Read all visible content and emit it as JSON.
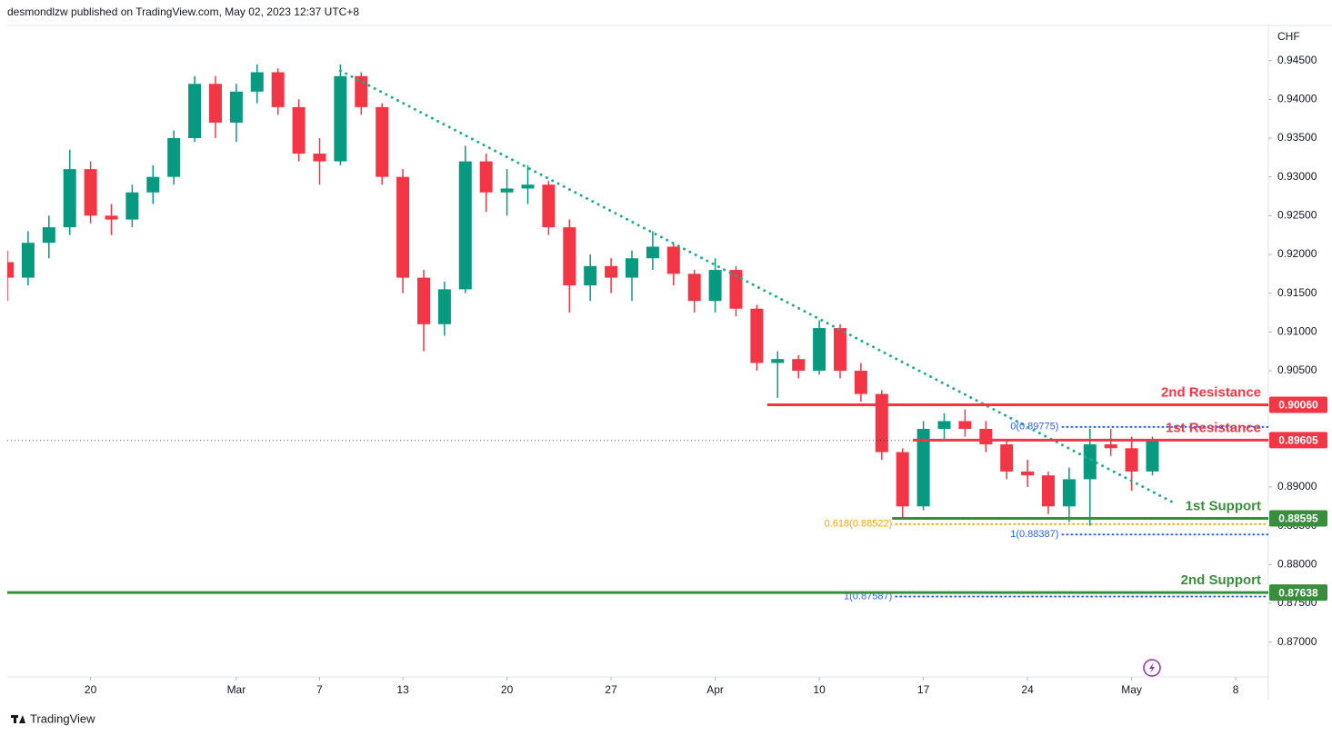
{
  "header": "desmondlzw published on TradingView.com, May 02, 2023 12:37 UTC+8",
  "footer": "TradingView",
  "chart_data": {
    "type": "candlestick",
    "currency": "CHF",
    "x": [
      "Feb 14",
      "Feb 15",
      "Feb 16",
      "Feb 17",
      "Feb 20",
      "Feb 21",
      "Feb 22",
      "Feb 23",
      "Feb 24",
      "Feb 27",
      "Feb 28",
      "Mar 1",
      "Mar 2",
      "Mar 3",
      "Mar 6",
      "Mar 7",
      "Mar 8",
      "Mar 9",
      "Mar 10",
      "Mar 13",
      "Mar 14",
      "Mar 15",
      "Mar 16",
      "Mar 17",
      "Mar 20",
      "Mar 21",
      "Mar 22",
      "Mar 23",
      "Mar 24",
      "Mar 27",
      "Mar 28",
      "Mar 29",
      "Mar 30",
      "Mar 31",
      "Apr 3",
      "Apr 4",
      "Apr 5",
      "Apr 6",
      "Apr 7",
      "Apr 10",
      "Apr 11",
      "Apr 12",
      "Apr 13",
      "Apr 14",
      "Apr 17",
      "Apr 18",
      "Apr 19",
      "Apr 20",
      "Apr 21",
      "Apr 24",
      "Apr 25",
      "Apr 26",
      "Apr 27",
      "Apr 28",
      "May 1",
      "May 2",
      "May 3",
      "May 4",
      "May 5",
      "May 8",
      "May 9"
    ],
    "open": [
      0.919,
      0.917,
      0.9215,
      0.9235,
      0.931,
      0.925,
      0.9245,
      0.928,
      0.93,
      0.935,
      0.942,
      0.937,
      0.941,
      0.9435,
      0.939,
      0.933,
      0.932,
      0.943,
      0.939,
      0.93,
      0.917,
      0.911,
      0.9155,
      0.932,
      0.928,
      0.9285,
      0.929,
      0.9235,
      0.916,
      0.9185,
      0.917,
      0.9195,
      0.921,
      0.9175,
      0.914,
      0.918,
      0.913,
      0.906,
      0.9065,
      0.905,
      0.9105,
      0.905,
      0.902,
      0.8945,
      0.8875,
      0.8975,
      0.8985,
      0.8975,
      0.8955,
      0.892,
      0.8915,
      0.8875,
      0.891,
      0.8955,
      0.895,
      0.892,
      null,
      null,
      null,
      null,
      null
    ],
    "high": [
      0.9205,
      0.923,
      0.925,
      0.9335,
      0.932,
      0.9265,
      0.929,
      0.9315,
      0.936,
      0.943,
      0.943,
      0.942,
      0.9445,
      0.944,
      0.94,
      0.935,
      0.9445,
      0.9435,
      0.9395,
      0.931,
      0.918,
      0.9165,
      0.934,
      0.933,
      0.931,
      0.9315,
      0.9295,
      0.9245,
      0.92,
      0.9195,
      0.9205,
      0.923,
      0.9215,
      0.918,
      0.9195,
      0.9185,
      0.9135,
      0.9075,
      0.907,
      0.9115,
      0.911,
      0.906,
      0.9025,
      0.895,
      0.8985,
      0.8995,
      0.9,
      0.8985,
      0.896,
      0.8935,
      0.892,
      0.8925,
      0.8975,
      0.8975,
      0.8965,
      0.8965,
      null,
      null,
      null,
      null,
      null
    ],
    "low": [
      0.914,
      0.916,
      0.9195,
      0.9225,
      0.924,
      0.9225,
      0.9235,
      0.9265,
      0.929,
      0.9345,
      0.935,
      0.9345,
      0.9395,
      0.938,
      0.932,
      0.929,
      0.9315,
      0.938,
      0.929,
      0.915,
      0.9075,
      0.9095,
      0.915,
      0.9255,
      0.925,
      0.9265,
      0.9225,
      0.9125,
      0.914,
      0.915,
      0.914,
      0.918,
      0.916,
      0.9125,
      0.9125,
      0.912,
      0.905,
      0.9015,
      0.904,
      0.9045,
      0.904,
      0.901,
      0.8935,
      0.886,
      0.887,
      0.896,
      0.8965,
      0.8945,
      0.891,
      0.89,
      0.8865,
      0.8855,
      0.885,
      0.894,
      0.8895,
      0.8915,
      null,
      null,
      null,
      null,
      null
    ],
    "close": [
      0.917,
      0.9215,
      0.9235,
      0.931,
      0.925,
      0.9245,
      0.928,
      0.93,
      0.935,
      0.942,
      0.937,
      0.941,
      0.9435,
      0.939,
      0.933,
      0.932,
      0.943,
      0.939,
      0.93,
      0.917,
      0.911,
      0.9155,
      0.932,
      0.928,
      0.9285,
      0.929,
      0.9235,
      0.916,
      0.9185,
      0.917,
      0.9195,
      0.921,
      0.9175,
      0.914,
      0.918,
      0.913,
      0.906,
      0.9065,
      0.905,
      0.9105,
      0.905,
      0.902,
      0.8945,
      0.8875,
      0.8975,
      0.8985,
      0.8975,
      0.8955,
      0.892,
      0.8915,
      0.8875,
      0.891,
      0.8955,
      0.895,
      0.892,
      0.896,
      null,
      null,
      null,
      null,
      null
    ],
    "up_color": "#089981",
    "down_color": "#f23645",
    "ylim": [
      0.8655,
      0.9493
    ],
    "yticks": [
      {
        "value": 0.945,
        "label": "0.94500"
      },
      {
        "value": 0.94,
        "label": "0.94000"
      },
      {
        "value": 0.935,
        "label": "0.93500"
      },
      {
        "value": 0.93,
        "label": "0.93000"
      },
      {
        "value": 0.925,
        "label": "0.92500"
      },
      {
        "value": 0.92,
        "label": "0.92000"
      },
      {
        "value": 0.915,
        "label": "0.91500"
      },
      {
        "value": 0.91,
        "label": "0.91000"
      },
      {
        "value": 0.905,
        "label": "0.90500"
      },
      {
        "value": 0.89,
        "label": "0.89000"
      },
      {
        "value": 0.885,
        "label": "0.88500"
      },
      {
        "value": 0.88,
        "label": "0.88000"
      },
      {
        "value": 0.875,
        "label": "0.87500"
      },
      {
        "value": 0.87,
        "label": "0.87000"
      }
    ],
    "xticks": [
      {
        "value": "Feb 20",
        "label": "20"
      },
      {
        "value": "Mar 1",
        "label": "Mar"
      },
      {
        "value": "Mar 7",
        "label": "7"
      },
      {
        "value": "Mar 13",
        "label": "13"
      },
      {
        "value": "Mar 20",
        "label": "20"
      },
      {
        "value": "Mar 27",
        "label": "27"
      },
      {
        "value": "Apr 3",
        "label": "Apr"
      },
      {
        "value": "Apr 10",
        "label": "10"
      },
      {
        "value": "Apr 17",
        "label": "17"
      },
      {
        "value": "Apr 24",
        "label": "24"
      },
      {
        "value": "May 1",
        "label": "May"
      },
      {
        "value": "May 8",
        "label": "8"
      }
    ],
    "levels": [
      {
        "label": "2nd Resistance",
        "value": 0.9006,
        "value_label": "0.90060",
        "color": "#f23645",
        "from": "Apr 6"
      },
      {
        "label": "1st Resistance",
        "value": 0.89605,
        "value_label": "0.89605",
        "color": "#f23645",
        "from": "Apr 17"
      },
      {
        "label": "1st Support",
        "value": 0.88595,
        "value_label": "0.88595",
        "color": "#388e3c",
        "from": "Apr 14"
      },
      {
        "label": "2nd Support",
        "value": 0.87638,
        "value_label": "0.87638",
        "color": "#388e3c"
      }
    ],
    "fib_levels": [
      {
        "label": "0(0.89775)",
        "value": 0.89775,
        "color": "#2962ff",
        "from": "Apr 26"
      },
      {
        "label": "1(0.88387)",
        "value": 0.88387,
        "color": "#2962ff",
        "from": "Apr 26"
      },
      {
        "label": "0.618(0.88522)",
        "value": 0.88522,
        "color": "#f7a600",
        "from": "Apr 14"
      },
      {
        "label": "1(0.87587)",
        "value": 0.87587,
        "color": "#2962ff",
        "from": "Apr 14"
      }
    ],
    "trendline": {
      "x": [
        "Mar 8",
        "May 3"
      ],
      "y": [
        0.9437,
        0.888
      ],
      "color": "#22ab94"
    }
  }
}
